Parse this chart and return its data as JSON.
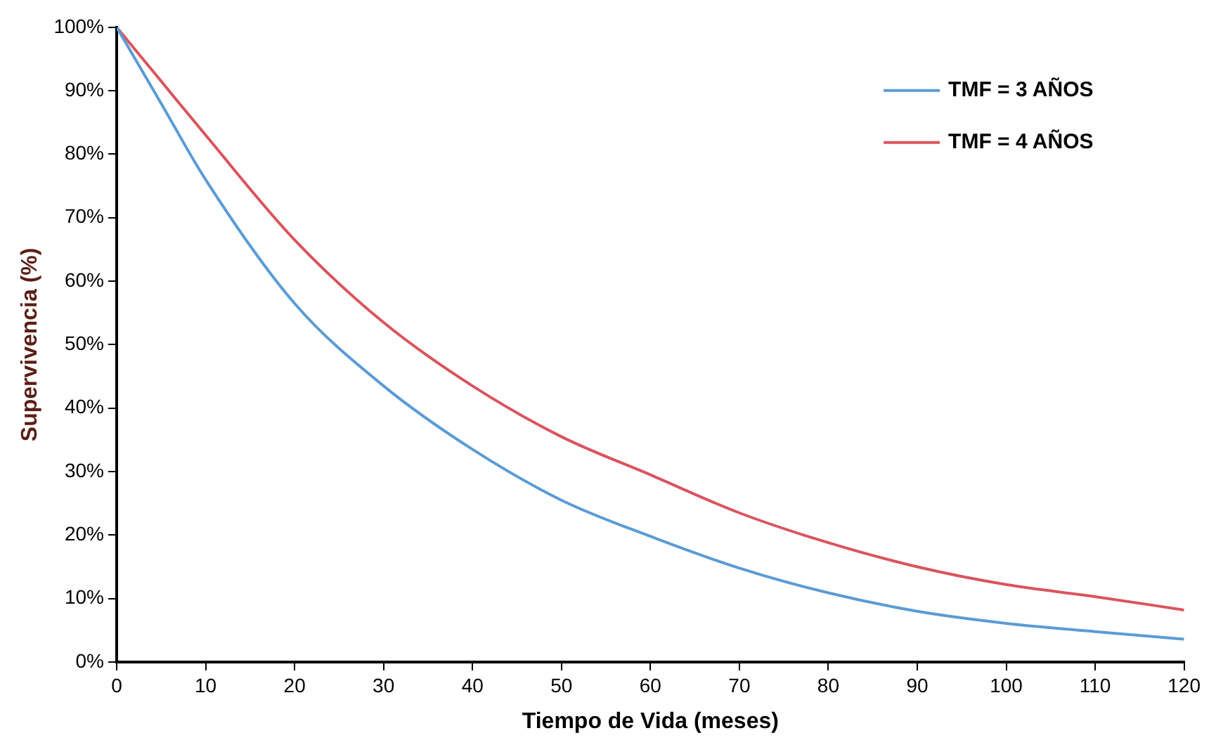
{
  "chart_data": {
    "type": "line",
    "xlabel": "Tiempo de Vida (meses)",
    "ylabel": "Supervivencia (%)",
    "x": [
      0,
      5,
      10,
      20,
      30,
      40,
      50,
      60,
      70,
      80,
      90,
      100,
      110,
      120
    ],
    "series": [
      {
        "name": "TMF = 3 AÑOS",
        "color": "#5b9bd5",
        "values": [
          100,
          88,
          76,
          56.5,
          43.5,
          33.5,
          25.5,
          19.8,
          14.8,
          10.9,
          8,
          6.1,
          4.8,
          3.6
        ]
      },
      {
        "name": "TMF = 4 AÑOS",
        "color": "#d9545e",
        "values": [
          100,
          91.5,
          83,
          66.5,
          53.5,
          43.5,
          35.5,
          29.5,
          23.5,
          18.8,
          15,
          12.2,
          10.3,
          8.2
        ]
      }
    ],
    "xlim": [
      0,
      120
    ],
    "xticks": [
      0,
      10,
      20,
      30,
      40,
      50,
      60,
      70,
      80,
      90,
      100,
      110,
      120
    ],
    "ylim": [
      0,
      100
    ],
    "yticks": [
      {
        "value": 0,
        "label": "0%"
      },
      {
        "value": 10,
        "label": "10%"
      },
      {
        "value": 20,
        "label": "20%"
      },
      {
        "value": 30,
        "label": "30%"
      },
      {
        "value": 40,
        "label": "40%"
      },
      {
        "value": 50,
        "label": "50%"
      },
      {
        "value": 60,
        "label": "60%"
      },
      {
        "value": 70,
        "label": "70%"
      },
      {
        "value": 80,
        "label": "80%"
      },
      {
        "value": 90,
        "label": "90%"
      },
      {
        "value": 100,
        "label": "100%"
      }
    ],
    "grid": false,
    "legend": "top right",
    "marker": "none",
    "line_style": "solid"
  }
}
